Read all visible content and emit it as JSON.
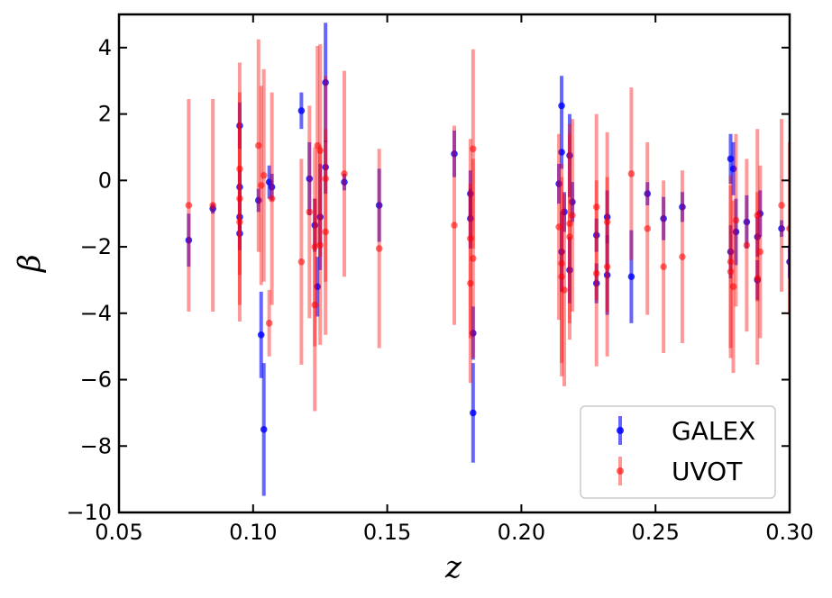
{
  "chart_data": {
    "type": "scatter",
    "xlabel": "z",
    "ylabel": "β",
    "xlim": [
      0.05,
      0.3
    ],
    "ylim": [
      -10,
      5
    ],
    "xticks": [
      0.05,
      0.1,
      0.15,
      0.2,
      0.25,
      0.3
    ],
    "yticks": [
      -10,
      -8,
      -6,
      -4,
      -2,
      0,
      2,
      4
    ],
    "xtick_labels": [
      "0.05",
      "0.10",
      "0.15",
      "0.20",
      "0.25",
      "0.30"
    ],
    "ytick_labels": [
      "−10",
      "−8",
      "−6",
      "−4",
      "−2",
      "0",
      "2",
      "4"
    ],
    "grid": false,
    "legend_position": "lower-right",
    "series": [
      {
        "name": "GALEX",
        "color": "#0000ff",
        "points": [
          {
            "x": 0.076,
            "y": -1.8,
            "err": 0.8
          },
          {
            "x": 0.085,
            "y": -0.85,
            "err": 0.15
          },
          {
            "x": 0.095,
            "y": 1.65,
            "err": 0.7
          },
          {
            "x": 0.095,
            "y": -0.2,
            "err": 0.5
          },
          {
            "x": 0.095,
            "y": -1.1,
            "err": 0.4
          },
          {
            "x": 0.095,
            "y": -1.6,
            "err": 0.5
          },
          {
            "x": 0.102,
            "y": -0.6,
            "err": 0.35
          },
          {
            "x": 0.103,
            "y": -4.65,
            "err": 1.3
          },
          {
            "x": 0.104,
            "y": -7.5,
            "err": 2.0
          },
          {
            "x": 0.106,
            "y": -0.05,
            "err": 0.5
          },
          {
            "x": 0.107,
            "y": -0.2,
            "err": 0.4
          },
          {
            "x": 0.118,
            "y": 2.1,
            "err": 0.55
          },
          {
            "x": 0.121,
            "y": 0.05,
            "err": 1.1
          },
          {
            "x": 0.123,
            "y": -1.35,
            "err": 0.8
          },
          {
            "x": 0.124,
            "y": -3.2,
            "err": 0.9
          },
          {
            "x": 0.125,
            "y": -1.1,
            "err": 1.6
          },
          {
            "x": 0.127,
            "y": 2.95,
            "err": 1.8
          },
          {
            "x": 0.127,
            "y": 0.4,
            "err": 0.8
          },
          {
            "x": 0.134,
            "y": -0.05,
            "err": 0.25
          },
          {
            "x": 0.147,
            "y": -0.75,
            "err": 1.1
          },
          {
            "x": 0.175,
            "y": 0.8,
            "err": 0.7
          },
          {
            "x": 0.181,
            "y": -0.4,
            "err": 0.7
          },
          {
            "x": 0.181,
            "y": -1.15,
            "err": 0.9
          },
          {
            "x": 0.182,
            "y": -4.6,
            "err": 0.8
          },
          {
            "x": 0.182,
            "y": -7.0,
            "err": 1.5
          },
          {
            "x": 0.214,
            "y": -0.1,
            "err": 0.6
          },
          {
            "x": 0.215,
            "y": 2.25,
            "err": 0.9
          },
          {
            "x": 0.215,
            "y": -2.15,
            "err": 1.2
          },
          {
            "x": 0.215,
            "y": 0.85,
            "err": 0.5
          },
          {
            "x": 0.216,
            "y": -0.95,
            "err": 0.6
          },
          {
            "x": 0.218,
            "y": 0.75,
            "err": 1.25
          },
          {
            "x": 0.218,
            "y": -2.7,
            "err": 1.0
          },
          {
            "x": 0.219,
            "y": -0.65,
            "err": 0.6
          },
          {
            "x": 0.228,
            "y": -1.65,
            "err": 0.5
          },
          {
            "x": 0.228,
            "y": -3.1,
            "err": 0.6
          },
          {
            "x": 0.232,
            "y": -1.1,
            "err": 0.8
          },
          {
            "x": 0.232,
            "y": -2.85,
            "err": 1.2
          },
          {
            "x": 0.241,
            "y": -2.9,
            "err": 1.4
          },
          {
            "x": 0.247,
            "y": -0.4,
            "err": 0.35
          },
          {
            "x": 0.253,
            "y": -1.15,
            "err": 0.65
          },
          {
            "x": 0.26,
            "y": -0.8,
            "err": 0.45
          },
          {
            "x": 0.278,
            "y": 0.65,
            "err": 0.75
          },
          {
            "x": 0.278,
            "y": -2.15,
            "err": 0.8
          },
          {
            "x": 0.279,
            "y": 0.35,
            "err": 0.8
          },
          {
            "x": 0.28,
            "y": -1.55,
            "err": 1.0
          },
          {
            "x": 0.284,
            "y": -1.25,
            "err": 0.8
          },
          {
            "x": 0.288,
            "y": -1.7,
            "err": 0.6
          },
          {
            "x": 0.288,
            "y": -3.0,
            "err": 0.6
          },
          {
            "x": 0.289,
            "y": -1.0,
            "err": 0.7
          },
          {
            "x": 0.297,
            "y": -1.45,
            "err": 0.25
          },
          {
            "x": 0.3,
            "y": -2.45,
            "err": 0.5
          }
        ]
      },
      {
        "name": "UVOT",
        "color": "#ff0000",
        "points": [
          {
            "x": 0.076,
            "y": -0.75,
            "err": 3.2
          },
          {
            "x": 0.085,
            "y": -0.75,
            "err": 3.2
          },
          {
            "x": 0.095,
            "y": 0.35,
            "err": 3.2
          },
          {
            "x": 0.095,
            "y": -0.55,
            "err": 3.2
          },
          {
            "x": 0.095,
            "y": -1.25,
            "err": 3.0
          },
          {
            "x": 0.102,
            "y": 1.05,
            "err": 3.2
          },
          {
            "x": 0.103,
            "y": -0.15,
            "err": 3.0
          },
          {
            "x": 0.104,
            "y": 0.15,
            "err": 3.2
          },
          {
            "x": 0.106,
            "y": -4.3,
            "err": 1.0
          },
          {
            "x": 0.107,
            "y": -0.55,
            "err": 3.2
          },
          {
            "x": 0.118,
            "y": -2.45,
            "err": 3.1
          },
          {
            "x": 0.121,
            "y": -0.95,
            "err": 3.2
          },
          {
            "x": 0.123,
            "y": -3.75,
            "err": 3.2
          },
          {
            "x": 0.123,
            "y": -2.0,
            "err": 3.0
          },
          {
            "x": 0.124,
            "y": 1.05,
            "err": 3.0
          },
          {
            "x": 0.125,
            "y": 0.9,
            "err": 3.2
          },
          {
            "x": 0.125,
            "y": -1.95,
            "err": 3.0
          },
          {
            "x": 0.127,
            "y": 0.05,
            "err": 3.1
          },
          {
            "x": 0.127,
            "y": -1.55,
            "err": 3.1
          },
          {
            "x": 0.134,
            "y": 0.2,
            "err": 3.1
          },
          {
            "x": 0.147,
            "y": -2.05,
            "err": 3.0
          },
          {
            "x": 0.175,
            "y": -1.35,
            "err": 3.0
          },
          {
            "x": 0.181,
            "y": -1.75,
            "err": 3.0
          },
          {
            "x": 0.181,
            "y": -3.1,
            "err": 3.0
          },
          {
            "x": 0.182,
            "y": 0.95,
            "err": 3.0
          },
          {
            "x": 0.182,
            "y": -2.35,
            "err": 3.0
          },
          {
            "x": 0.214,
            "y": -1.4,
            "err": 2.8
          },
          {
            "x": 0.215,
            "y": -2.5,
            "err": 3.0
          },
          {
            "x": 0.215,
            "y": -2.9,
            "err": 3.0
          },
          {
            "x": 0.216,
            "y": -3.3,
            "err": 2.9
          },
          {
            "x": 0.218,
            "y": -1.7,
            "err": 3.1
          },
          {
            "x": 0.218,
            "y": -1.3,
            "err": 3.0
          },
          {
            "x": 0.219,
            "y": -1.05,
            "err": 2.9
          },
          {
            "x": 0.228,
            "y": -0.8,
            "err": 2.8
          },
          {
            "x": 0.228,
            "y": -2.8,
            "err": 2.8
          },
          {
            "x": 0.232,
            "y": -1.25,
            "err": 2.7
          },
          {
            "x": 0.232,
            "y": -2.6,
            "err": 2.7
          },
          {
            "x": 0.241,
            "y": 0.2,
            "err": 2.6
          },
          {
            "x": 0.247,
            "y": -1.45,
            "err": 2.6
          },
          {
            "x": 0.253,
            "y": -2.6,
            "err": 2.6
          },
          {
            "x": 0.26,
            "y": -2.3,
            "err": 2.6
          },
          {
            "x": 0.278,
            "y": -2.45,
            "err": 2.6
          },
          {
            "x": 0.278,
            "y": -2.75,
            "err": 2.6
          },
          {
            "x": 0.279,
            "y": -3.2,
            "err": 2.6
          },
          {
            "x": 0.28,
            "y": -1.2,
            "err": 2.6
          },
          {
            "x": 0.284,
            "y": -1.95,
            "err": 2.6
          },
          {
            "x": 0.288,
            "y": -1.05,
            "err": 2.6
          },
          {
            "x": 0.288,
            "y": -2.95,
            "err": 2.6
          },
          {
            "x": 0.289,
            "y": -2.15,
            "err": 2.6
          },
          {
            "x": 0.297,
            "y": -0.75,
            "err": 2.6
          },
          {
            "x": 0.3,
            "y": -1.45,
            "err": 2.6
          }
        ]
      }
    ]
  }
}
